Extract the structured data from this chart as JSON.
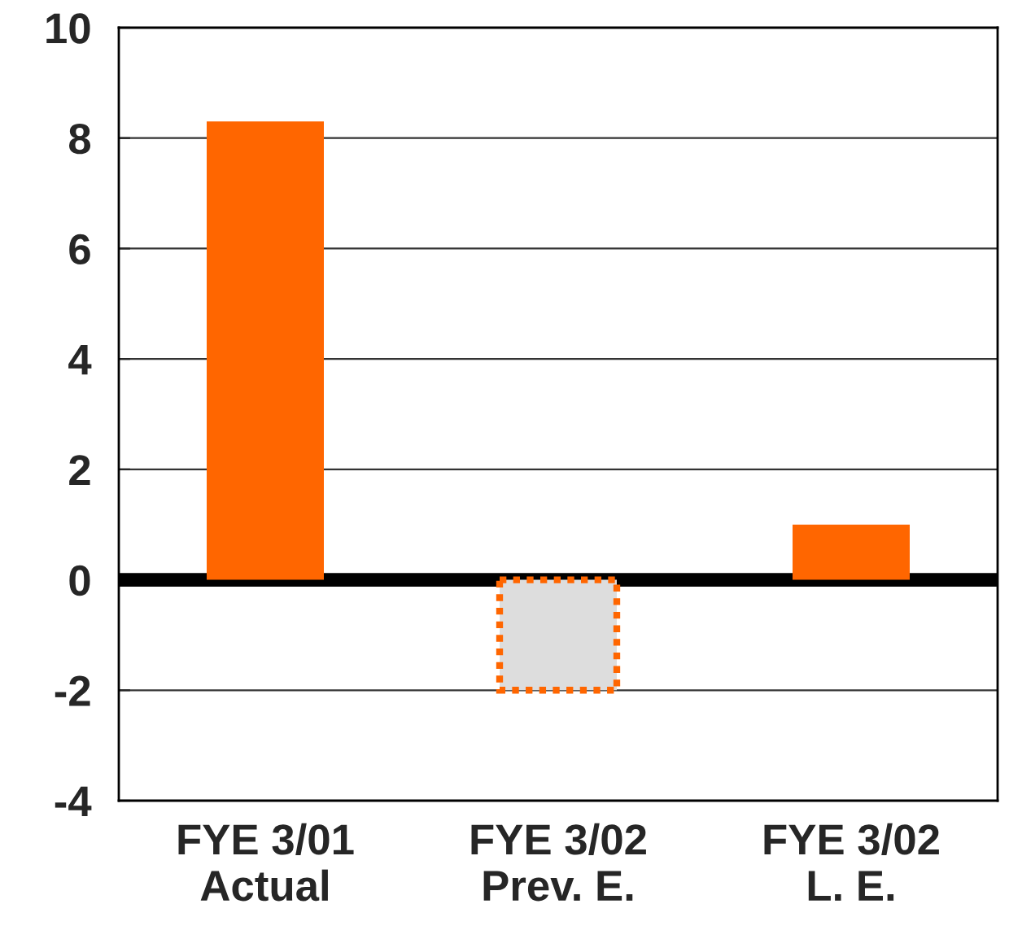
{
  "chart_data": {
    "type": "bar",
    "categories": [
      "FYE 3/01\nActual",
      "FYE 3/02\nPrev. E.",
      "FYE 3/02\nL. E."
    ],
    "series": [
      {
        "color": "#ff6600",
        "values": [
          8.3,
          null,
          1.0
        ]
      },
      {
        "color": "#dddddd",
        "values": [
          null,
          -2.0,
          null
        ],
        "line_style": "dotted"
      }
    ],
    "ylim": [
      -4,
      10
    ],
    "yticks": [
      -4,
      -2,
      0,
      2,
      4,
      6,
      8,
      10
    ],
    "grid": "y",
    "ref_lines": [
      {
        "axis": "y",
        "value": 0,
        "color": "#000000"
      }
    ]
  }
}
